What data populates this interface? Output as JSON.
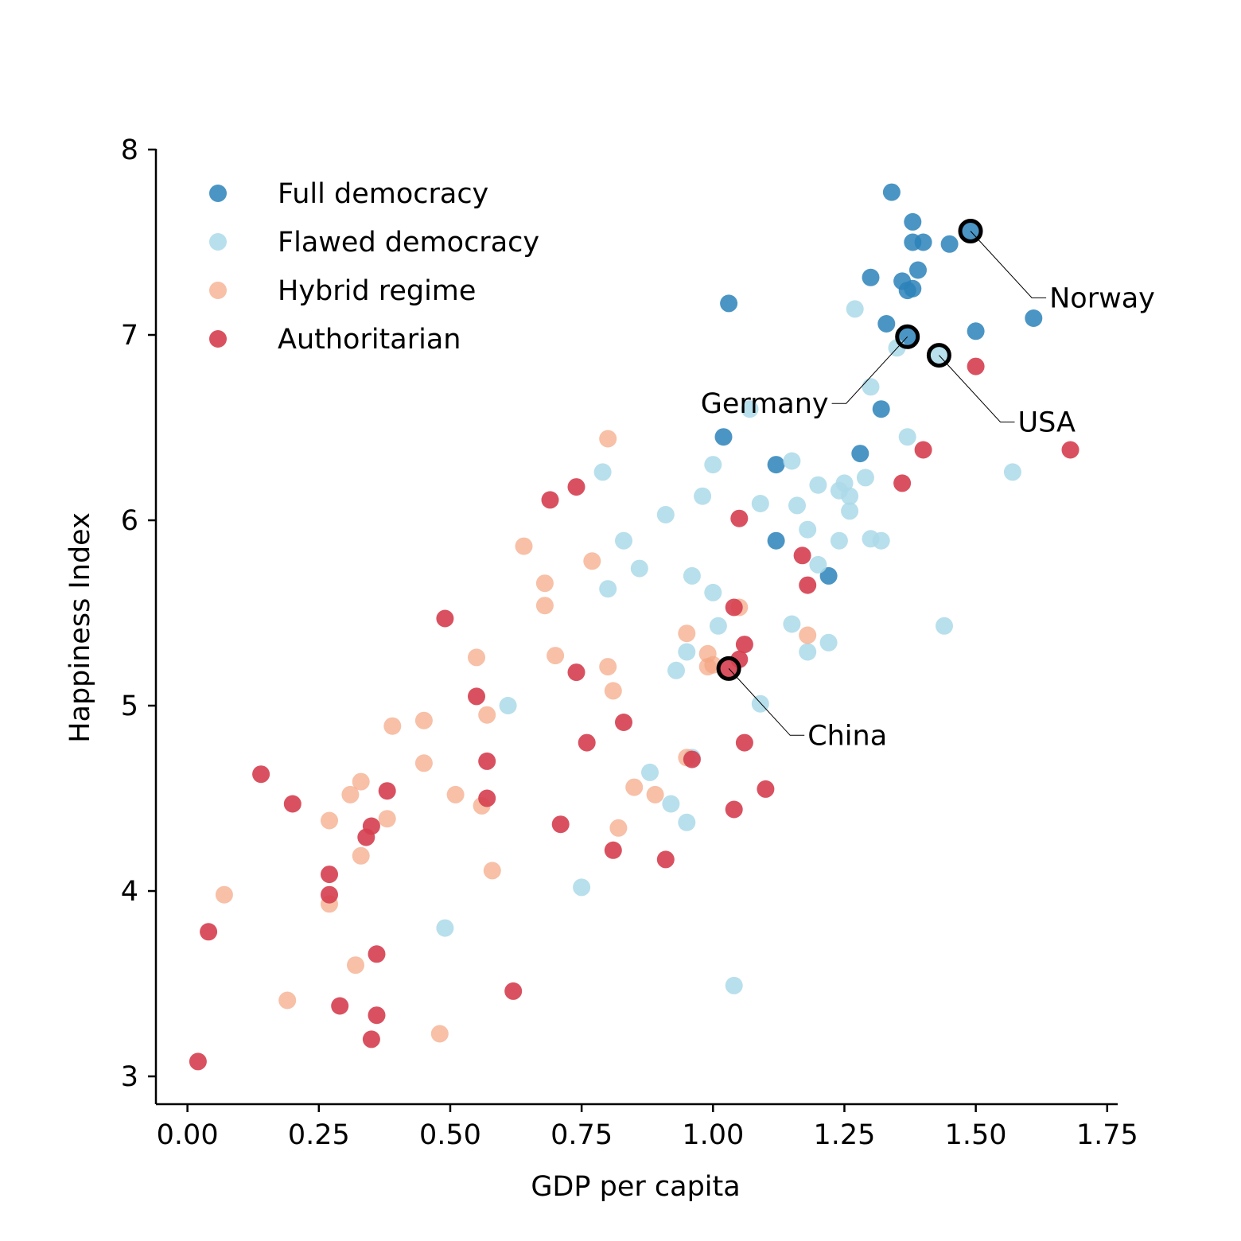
{
  "chart_data": {
    "type": "scatter",
    "xlabel": "GDP per capita",
    "ylabel": "Happiness Index",
    "xlim": [
      -0.06,
      1.77
    ],
    "ylim": [
      2.85,
      8.0
    ],
    "xticks": [
      "0.00",
      "0.25",
      "0.50",
      "0.75",
      "1.00",
      "1.25",
      "1.50",
      "1.75"
    ],
    "yticks": [
      "3",
      "4",
      "5",
      "6",
      "7",
      "8"
    ],
    "legend_position": "top-left",
    "grid": false,
    "series": [
      {
        "name": "Full democracy",
        "color": "#2b83ba",
        "opacity": 0.85,
        "points": [
          [
            1.34,
            7.77
          ],
          [
            1.38,
            7.61
          ],
          [
            1.38,
            7.5
          ],
          [
            1.4,
            7.5
          ],
          [
            1.45,
            7.49
          ],
          [
            1.49,
            7.56
          ],
          [
            1.39,
            7.35
          ],
          [
            1.3,
            7.31
          ],
          [
            1.36,
            7.29
          ],
          [
            1.37,
            7.24
          ],
          [
            1.38,
            7.25
          ],
          [
            1.03,
            7.17
          ],
          [
            1.61,
            7.09
          ],
          [
            1.33,
            7.06
          ],
          [
            1.5,
            7.02
          ],
          [
            1.37,
            6.99
          ],
          [
            1.32,
            6.6
          ],
          [
            1.02,
            6.45
          ],
          [
            1.28,
            6.36
          ],
          [
            1.12,
            6.3
          ],
          [
            1.12,
            5.89
          ],
          [
            1.22,
            5.7
          ]
        ]
      },
      {
        "name": "Flawed democracy",
        "color": "#abd9e9",
        "opacity": 0.85,
        "points": [
          [
            1.27,
            7.14
          ],
          [
            1.35,
            6.93
          ],
          [
            1.43,
            6.89
          ],
          [
            1.3,
            6.72
          ],
          [
            1.07,
            6.6
          ],
          [
            1.37,
            6.45
          ],
          [
            1.15,
            6.32
          ],
          [
            1.0,
            6.3
          ],
          [
            0.79,
            6.26
          ],
          [
            1.57,
            6.26
          ],
          [
            1.29,
            6.23
          ],
          [
            1.25,
            6.2
          ],
          [
            1.2,
            6.19
          ],
          [
            1.24,
            6.16
          ],
          [
            1.26,
            6.13
          ],
          [
            0.98,
            6.13
          ],
          [
            1.09,
            6.09
          ],
          [
            1.16,
            6.08
          ],
          [
            1.26,
            6.05
          ],
          [
            0.91,
            6.03
          ],
          [
            1.18,
            5.95
          ],
          [
            0.83,
            5.89
          ],
          [
            1.24,
            5.89
          ],
          [
            1.3,
            5.9
          ],
          [
            1.32,
            5.89
          ],
          [
            1.2,
            5.76
          ],
          [
            0.86,
            5.74
          ],
          [
            0.96,
            5.7
          ],
          [
            0.8,
            5.63
          ],
          [
            1.0,
            5.61
          ],
          [
            1.44,
            5.43
          ],
          [
            1.15,
            5.44
          ],
          [
            1.01,
            5.43
          ],
          [
            1.22,
            5.34
          ],
          [
            0.95,
            5.29
          ],
          [
            1.18,
            5.29
          ],
          [
            0.93,
            5.19
          ],
          [
            1.09,
            5.01
          ],
          [
            0.61,
            5.0
          ],
          [
            0.96,
            4.72
          ],
          [
            0.88,
            4.64
          ],
          [
            0.92,
            4.47
          ],
          [
            0.95,
            4.37
          ],
          [
            0.75,
            4.02
          ],
          [
            0.49,
            3.8
          ],
          [
            1.04,
            3.49
          ]
        ]
      },
      {
        "name": "Hybrid regime",
        "color": "#f4a582",
        "opacity": 0.7,
        "points": [
          [
            0.8,
            6.44
          ],
          [
            0.64,
            5.86
          ],
          [
            0.77,
            5.78
          ],
          [
            0.68,
            5.66
          ],
          [
            0.68,
            5.54
          ],
          [
            1.05,
            5.53
          ],
          [
            0.95,
            5.39
          ],
          [
            1.18,
            5.38
          ],
          [
            0.99,
            5.28
          ],
          [
            0.7,
            5.27
          ],
          [
            0.55,
            5.26
          ],
          [
            0.8,
            5.21
          ],
          [
            0.99,
            5.21
          ],
          [
            1.0,
            5.22
          ],
          [
            0.81,
            5.08
          ],
          [
            0.57,
            4.95
          ],
          [
            0.45,
            4.92
          ],
          [
            0.39,
            4.89
          ],
          [
            0.95,
            4.72
          ],
          [
            0.45,
            4.69
          ],
          [
            0.85,
            4.56
          ],
          [
            0.33,
            4.59
          ],
          [
            0.31,
            4.52
          ],
          [
            0.51,
            4.52
          ],
          [
            0.89,
            4.52
          ],
          [
            0.56,
            4.46
          ],
          [
            0.38,
            4.39
          ],
          [
            0.27,
            4.38
          ],
          [
            0.82,
            4.34
          ],
          [
            0.33,
            4.19
          ],
          [
            0.58,
            4.11
          ],
          [
            0.07,
            3.98
          ],
          [
            0.27,
            3.93
          ],
          [
            0.32,
            3.6
          ],
          [
            0.19,
            3.41
          ],
          [
            0.48,
            3.23
          ]
        ]
      },
      {
        "name": "Authoritarian",
        "color": "#d53e4f",
        "opacity": 0.9,
        "points": [
          [
            1.5,
            6.83
          ],
          [
            1.4,
            6.38
          ],
          [
            1.68,
            6.38
          ],
          [
            1.36,
            6.2
          ],
          [
            0.74,
            6.18
          ],
          [
            0.69,
            6.11
          ],
          [
            1.05,
            6.01
          ],
          [
            1.17,
            5.81
          ],
          [
            1.18,
            5.65
          ],
          [
            1.04,
            5.53
          ],
          [
            0.49,
            5.47
          ],
          [
            1.06,
            5.33
          ],
          [
            1.05,
            5.25
          ],
          [
            1.03,
            5.2
          ],
          [
            0.74,
            5.18
          ],
          [
            0.55,
            5.05
          ],
          [
            0.83,
            4.91
          ],
          [
            0.76,
            4.8
          ],
          [
            1.06,
            4.8
          ],
          [
            0.96,
            4.71
          ],
          [
            0.57,
            4.7
          ],
          [
            0.14,
            4.63
          ],
          [
            1.1,
            4.55
          ],
          [
            0.38,
            4.54
          ],
          [
            0.57,
            4.5
          ],
          [
            0.2,
            4.47
          ],
          [
            1.04,
            4.44
          ],
          [
            0.71,
            4.36
          ],
          [
            0.35,
            4.35
          ],
          [
            0.34,
            4.29
          ],
          [
            0.81,
            4.22
          ],
          [
            0.91,
            4.17
          ],
          [
            0.27,
            4.09
          ],
          [
            0.27,
            3.98
          ],
          [
            0.04,
            3.78
          ],
          [
            0.36,
            3.66
          ],
          [
            0.62,
            3.46
          ],
          [
            0.29,
            3.38
          ],
          [
            0.36,
            3.33
          ],
          [
            0.35,
            3.2
          ],
          [
            0.02,
            3.08
          ]
        ]
      }
    ],
    "annotations": [
      {
        "label": "Norway",
        "x": 1.49,
        "y": 7.56,
        "text_x": 1.64,
        "text_y": 7.2,
        "anchor": "start",
        "elbow": "down"
      },
      {
        "label": "Germany",
        "x": 1.37,
        "y": 6.99,
        "text_x": 1.22,
        "text_y": 6.63,
        "anchor": "end",
        "elbow": "down"
      },
      {
        "label": "USA",
        "x": 1.43,
        "y": 6.89,
        "text_x": 1.58,
        "text_y": 6.53,
        "anchor": "start",
        "elbow": "down"
      },
      {
        "label": "China",
        "x": 1.03,
        "y": 5.2,
        "text_x": 1.18,
        "text_y": 4.84,
        "anchor": "start",
        "elbow": "down"
      }
    ]
  }
}
